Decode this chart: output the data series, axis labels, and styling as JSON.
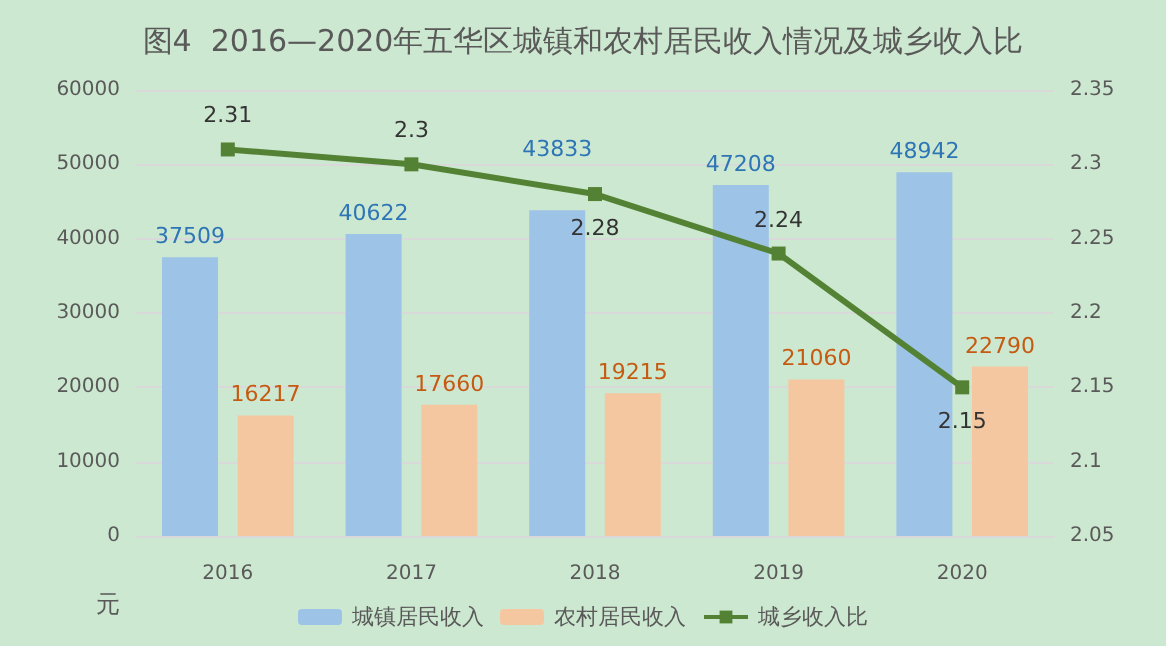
{
  "chart_data": {
    "type": "bar",
    "title": "图4  2016—2020年五华区城镇和农村居民收入情况及城乡收入比",
    "ylabel": "元",
    "categories": [
      "2016",
      "2017",
      "2018",
      "2019",
      "2020"
    ],
    "series": [
      {
        "name": "城镇居民收入",
        "color": "#9dc3e6",
        "values": [
          37509,
          40622,
          43833,
          47208,
          48942
        ]
      },
      {
        "name": "农村居民收入",
        "color": "#f4c7a1",
        "values": [
          16217,
          17660,
          19215,
          21060,
          22790
        ]
      },
      {
        "name": "城乡收入比",
        "type": "line",
        "axis": "y2",
        "color": "#548235",
        "marker": "square",
        "values": [
          2.31,
          2.3,
          2.28,
          2.24,
          2.15
        ]
      }
    ],
    "ylim": [
      0,
      60000
    ],
    "yticks": [
      0,
      10000,
      20000,
      30000,
      40000,
      50000,
      60000
    ],
    "y2lim": [
      2.05,
      2.35
    ],
    "y2ticks": [
      2.05,
      2.1,
      2.15,
      2.2,
      2.25,
      2.3,
      2.35
    ],
    "grid": "y",
    "legend": "bottom",
    "data_labels": true
  }
}
